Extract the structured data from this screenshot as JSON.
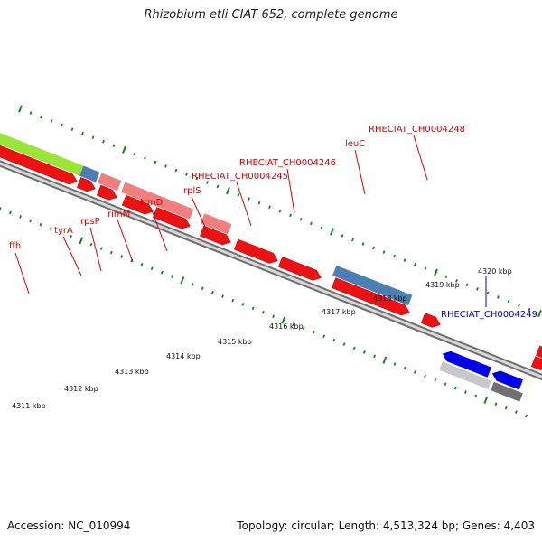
{
  "title": "Rhizobium etli CIAT 652, complete genome",
  "footer": {
    "accession": "Accession: NC_010994",
    "summary": "Topology: circular; Length: 4,513,324 bp; Genes: 4,403"
  },
  "colors": {
    "backbone": "#6e6e6e",
    "tick": "#1e7d1e",
    "label_forward": "#dd0000",
    "label_reverse": "#0000dd"
  },
  "scale_labels": [
    "4311 kbp",
    "4312 kbp",
    "4313 kbp",
    "4314 kbp",
    "4315 kbp",
    "4316 kbp",
    "4317 kbp",
    "4318 kbp",
    "4319 kbp",
    "4320 kbp"
  ],
  "gene_labels": [
    {
      "text": "ffh",
      "strand": "forward"
    },
    {
      "text": "tyrA",
      "strand": "forward"
    },
    {
      "text": "rpsP",
      "strand": "forward"
    },
    {
      "text": "rimM",
      "strand": "forward"
    },
    {
      "text": "trmD",
      "strand": "forward"
    },
    {
      "text": "rplS",
      "strand": "forward"
    },
    {
      "text": "RHECIAT_CH0004245",
      "strand": "forward"
    },
    {
      "text": "RHECIAT_CH0004246",
      "strand": "forward"
    },
    {
      "text": "leuC",
      "strand": "forward"
    },
    {
      "text": "RHECIAT_CH0004248",
      "strand": "forward"
    },
    {
      "text": "RHECIAT_CH0004249",
      "strand": "reverse"
    }
  ]
}
